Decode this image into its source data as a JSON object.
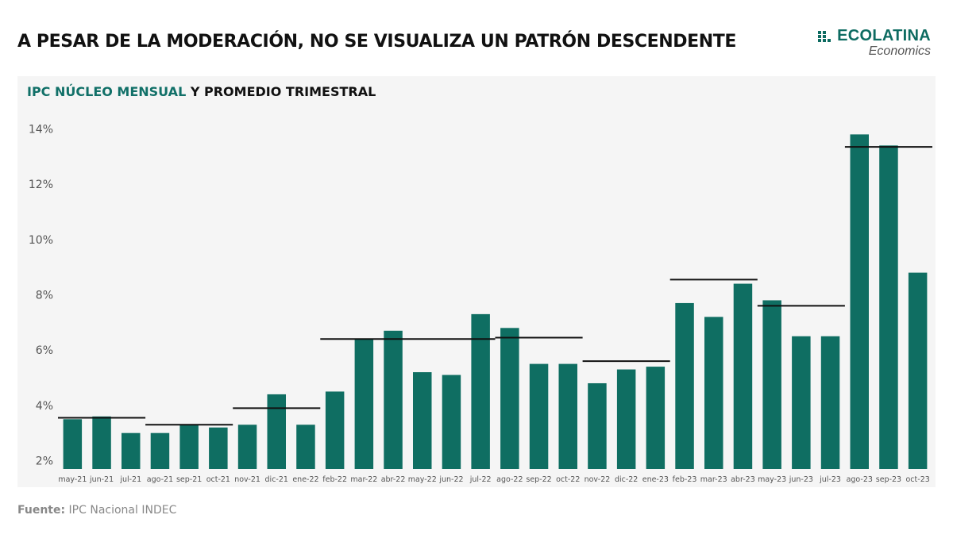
{
  "header": {
    "title": "A PESAR DE LA MODERACIÓN, NO SE VISUALIZA UN PATRÓN DESCENDENTE"
  },
  "brand": {
    "name": "ECOLATINA",
    "sub": "Economics",
    "color": "#0d6b61"
  },
  "footer": {
    "source_label": "Fuente:",
    "source_text": "IPC Nacional INDEC"
  },
  "chart_data": {
    "type": "bar",
    "title_accent": "IPC NÚCLEO MENSUAL",
    "title_rest": "Y PROMEDIO TRIMESTRAL",
    "categories": [
      "may-21",
      "jun-21",
      "jul-21",
      "ago-21",
      "sep-21",
      "oct-21",
      "nov-21",
      "dic-21",
      "ene-22",
      "feb-22",
      "mar-22",
      "abr-22",
      "may-22",
      "jun-22",
      "jul-22",
      "ago-22",
      "sep-22",
      "oct-22",
      "nov-22",
      "dic-22",
      "ene-23",
      "feb-23",
      "mar-23",
      "abr-23",
      "may-23",
      "jun-23",
      "jul-23",
      "ago-23",
      "sep-23",
      "oct-23"
    ],
    "series": [
      {
        "values": [
          3.5,
          3.6,
          3.0,
          3.0,
          3.3,
          3.2,
          3.3,
          4.4,
          3.3,
          4.5,
          6.4,
          6.7,
          5.2,
          5.1,
          7.3,
          6.8,
          5.5,
          5.5,
          4.8,
          5.3,
          5.4,
          7.7,
          7.2,
          8.4,
          7.8,
          6.5,
          6.5,
          13.8,
          13.4,
          8.8
        ],
        "color": "#0f6e62"
      }
    ],
    "quarterly_averages": [
      {
        "from": "may-21",
        "to": "jul-21",
        "value": 3.55
      },
      {
        "from": "ago-21",
        "to": "oct-21",
        "value": 3.3
      },
      {
        "from": "nov-21",
        "to": "ene-22",
        "value": 3.9
      },
      {
        "from": "feb-22",
        "to": "jul-22",
        "value": 6.4
      },
      {
        "from": "ago-22",
        "to": "oct-22",
        "value": 6.45
      },
      {
        "from": "nov-22",
        "to": "ene-23",
        "value": 5.6
      },
      {
        "from": "feb-23",
        "to": "abr-23",
        "value": 8.55
      },
      {
        "from": "may-23",
        "to": "jul-23",
        "value": 7.6
      },
      {
        "from": "ago-23",
        "to": "oct-23",
        "value": 13.35
      }
    ],
    "yticks": [
      "2%",
      "4%",
      "6%",
      "8%",
      "10%",
      "12%",
      "14%"
    ],
    "ytick_values": [
      2,
      4,
      6,
      8,
      10,
      12,
      14
    ],
    "ylim": [
      1.7,
      14.5
    ],
    "grid": false,
    "legend": "none"
  }
}
